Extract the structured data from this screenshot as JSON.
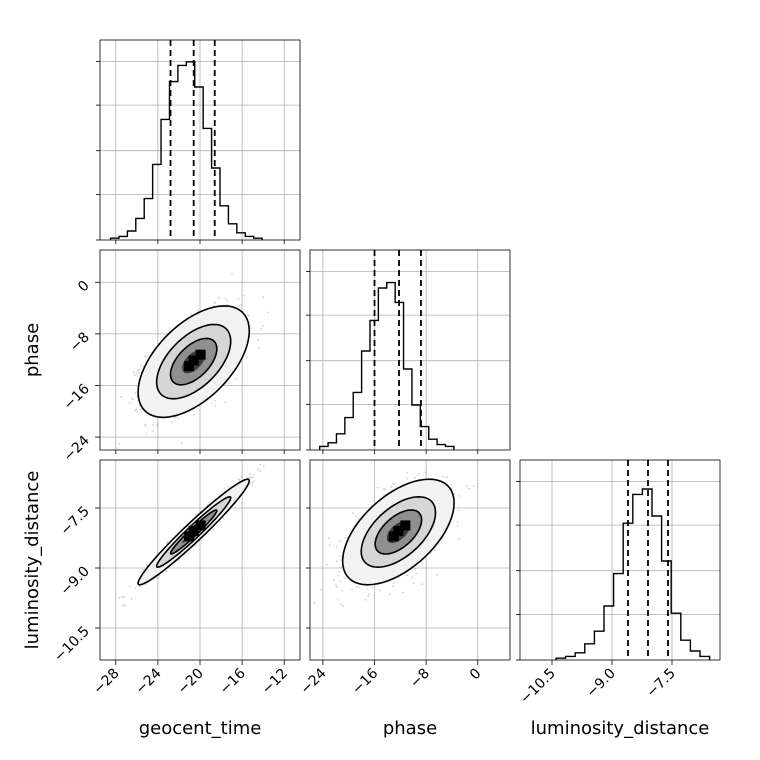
{
  "chart_data": {
    "type": "corner",
    "parameters": [
      "geocent_time",
      "phase",
      "luminosity_distance"
    ],
    "quantile_lines": {
      "geocent_time": [
        -22.8,
        -20.6,
        -18.6
      ],
      "phase": [
        -16.0,
        -12.2,
        -8.8
      ],
      "luminosity_distance": [
        -8.6,
        -8.1,
        -7.6
      ]
    },
    "histograms": [
      {
        "param": "geocent_time",
        "xlim": [
          -29.5,
          -10.5
        ],
        "bin_width": 0.8,
        "bins_start": -28.5,
        "counts": [
          0.01,
          0.02,
          0.05,
          0.12,
          0.23,
          0.42,
          0.67,
          0.88,
          0.97,
          0.99,
          0.85,
          0.62,
          0.4,
          0.19,
          0.09,
          0.04,
          0.02,
          0.01
        ]
      },
      {
        "param": "phase",
        "xlim": [
          -26,
          5
        ],
        "bin_width": 1.3,
        "bins_start": -24.5,
        "counts": [
          0.02,
          0.04,
          0.09,
          0.18,
          0.32,
          0.55,
          0.72,
          0.9,
          0.93,
          0.82,
          0.45,
          0.25,
          0.13,
          0.06,
          0.03,
          0.02
        ]
      },
      {
        "param": "luminosity_distance",
        "xlim": [
          -11.3,
          -6.3
        ],
        "bin_width": 0.24,
        "bins_start": -10.4,
        "counts": [
          0.01,
          0.02,
          0.04,
          0.09,
          0.16,
          0.3,
          0.48,
          0.76,
          0.92,
          0.95,
          0.8,
          0.55,
          0.26,
          0.11,
          0.05,
          0.02
        ]
      }
    ],
    "scatter_panels": [
      {
        "x": "geocent_time",
        "y": "phase",
        "xlim": [
          -29.5,
          -10.5
        ],
        "ylim": [
          -26,
          5
        ],
        "mean": [
          -20.6,
          -12.3
        ],
        "std": [
          2.2,
          3.6
        ],
        "corr": 0.55
      },
      {
        "x": "geocent_time",
        "y": "luminosity_distance",
        "xlim": [
          -29.5,
          -10.5
        ],
        "ylim": [
          -11.3,
          -6.3
        ],
        "mean": [
          -20.6,
          -8.1
        ],
        "std": [
          2.2,
          0.55
        ],
        "corr": 0.97
      },
      {
        "x": "phase",
        "y": "luminosity_distance",
        "xlim": [
          -26,
          5
        ],
        "ylim": [
          -11.3,
          -6.3
        ],
        "mean": [
          -12.3,
          -8.1
        ],
        "std": [
          3.6,
          0.55
        ],
        "corr": 0.55
      }
    ],
    "ticks": {
      "geocent_time": [
        -28,
        -24,
        -20,
        -16,
        -12
      ],
      "phase": [
        -24,
        -16,
        -8,
        0
      ],
      "luminosity_distance": [
        -10.5,
        -9.0,
        -7.5
      ]
    },
    "tick_labels": {
      "geocent_time": [
        "−28",
        "−24",
        "−20",
        "−16",
        "−12"
      ],
      "phase": [
        "−24",
        "−16",
        "−8",
        "0"
      ],
      "luminosity_distance": [
        "−10.5",
        "−9.0",
        "−7.5"
      ]
    },
    "axis_labels": {
      "x": [
        "geocent_time",
        "phase",
        "luminosity_distance"
      ],
      "y": [
        "phase",
        "luminosity_distance"
      ]
    },
    "grid": true,
    "legend": "none"
  }
}
